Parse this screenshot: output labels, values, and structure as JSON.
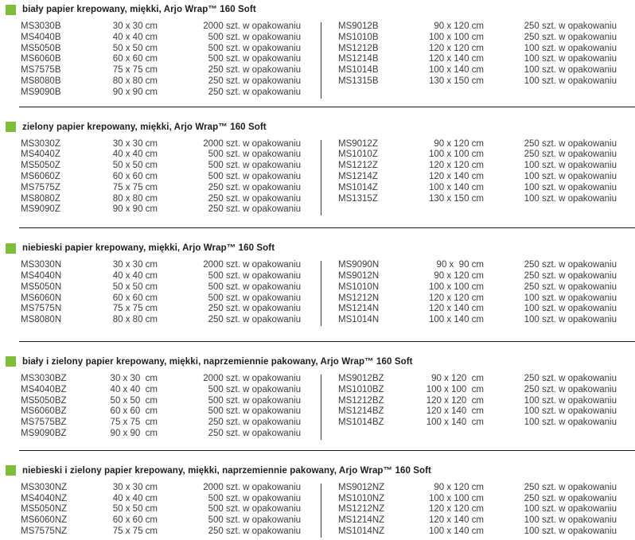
{
  "theme": {
    "bullet_green": "#7fbe3a",
    "text": "#3c3c3b",
    "heading": "#1d1d1b",
    "rule": "#1d1d1b"
  },
  "sections": [
    {
      "title": "biały papier krepowany, miękki, Arjo Wrap™ 160 Soft",
      "left": [
        {
          "code": "MS3030B",
          "size": "30 x 30 cm",
          "qty": "2000 szt. w opakowaniu"
        },
        {
          "code": "MS4040B",
          "size": "40 x 40 cm",
          "qty": "500 szt. w opakowaniu"
        },
        {
          "code": "MS5050B",
          "size": "50 x 50 cm",
          "qty": "500 szt. w opakowaniu"
        },
        {
          "code": "MS6060B",
          "size": "60 x 60 cm",
          "qty": "500 szt. w opakowaniu"
        },
        {
          "code": "MS7575B",
          "size": "75 x 75 cm",
          "qty": "250 szt. w opakowaniu"
        },
        {
          "code": "MS8080B",
          "size": "80 x 80 cm",
          "qty": "250 szt. w opakowaniu"
        },
        {
          "code": "MS9090B",
          "size": "90 x 90 cm",
          "qty": "250 szt. w opakowaniu"
        }
      ],
      "right": [
        {
          "code": "MS9012B",
          "size": "90 x 120 cm",
          "qty": "250 szt. w opakowaniu"
        },
        {
          "code": "MS1010B",
          "size": "100 x 100 cm",
          "qty": "250 szt. w opakowaniu"
        },
        {
          "code": "MS1212B",
          "size": "120 x 120 cm",
          "qty": "100 szt. w opakowaniu"
        },
        {
          "code": "MS1214B",
          "size": "120 x 140 cm",
          "qty": "100 szt. w opakowaniu"
        },
        {
          "code": "MS1014B",
          "size": "100 x 140 cm",
          "qty": "100 szt. w opakowaniu"
        },
        {
          "code": "MS1315B",
          "size": "130 x 150 cm",
          "qty": "100 szt. w opakowaniu"
        }
      ]
    },
    {
      "title": "zielony papier krepowany, miękki, Arjo Wrap™ 160 Soft",
      "left": [
        {
          "code": "MS3030Z",
          "size": "30 x 30 cm",
          "qty": "2000 szt. w opakowaniu"
        },
        {
          "code": "MS4040Z",
          "size": "40 x 40 cm",
          "qty": "500 szt. w opakowaniu"
        },
        {
          "code": "MS5050Z",
          "size": "50 x 50 cm",
          "qty": "500 szt. w opakowaniu"
        },
        {
          "code": "MS6060Z",
          "size": "60 x 60 cm",
          "qty": "500 szt. w opakowaniu"
        },
        {
          "code": "MS7575Z",
          "size": "75 x 75 cm",
          "qty": "250 szt. w opakowaniu"
        },
        {
          "code": "MS8080Z",
          "size": "80 x 80 cm",
          "qty": "250 szt. w opakowaniu"
        },
        {
          "code": "MS9090Z",
          "size": "90 x 90 cm",
          "qty": "250 szt. w opakowaniu"
        }
      ],
      "right": [
        {
          "code": "MS9012Z",
          "size": "90 x 120 cm",
          "qty": "250 szt. w opakowaniu"
        },
        {
          "code": "MS1010Z",
          "size": "100 x 100 cm",
          "qty": "250 szt. w opakowaniu"
        },
        {
          "code": "MS1212Z",
          "size": "120 x 120 cm",
          "qty": "100 szt. w opakowaniu"
        },
        {
          "code": "MS1214Z",
          "size": "120 x 140 cm",
          "qty": "100 szt. w opakowaniu"
        },
        {
          "code": "MS1014Z",
          "size": "100 x 140 cm",
          "qty": "100 szt. w opakowaniu"
        },
        {
          "code": "MS1315Z",
          "size": "130 x 150 cm",
          "qty": "100 szt. w opakowaniu"
        }
      ]
    },
    {
      "title": "niebieski papier krepowany, miękki, Arjo Wrap™ 160 Soft",
      "left": [
        {
          "code": "MS3030N",
          "size": "30 x 30 cm",
          "qty": "2000 szt. w opakowaniu"
        },
        {
          "code": "MS4040N",
          "size": "40 x 40 cm",
          "qty": "500 szt. w opakowaniu"
        },
        {
          "code": "MS5050N",
          "size": "50 x 50 cm",
          "qty": "500 szt. w opakowaniu"
        },
        {
          "code": "MS6060N",
          "size": "60 x 60 cm",
          "qty": "500 szt. w opakowaniu"
        },
        {
          "code": "MS7575N",
          "size": "75 x 75 cm",
          "qty": "250 szt. w opakowaniu"
        },
        {
          "code": "MS8080N",
          "size": "80 x 80 cm",
          "qty": "250 szt. w opakowaniu"
        }
      ],
      "right": [
        {
          "code": "MS9090N",
          "size": "90 x  90 cm",
          "qty": "250 szt. w opakowaniu"
        },
        {
          "code": "MS9012N",
          "size": "90 x 120 cm",
          "qty": "250 szt. w opakowaniu"
        },
        {
          "code": "MS1010N",
          "size": "100 x 100 cm",
          "qty": "250 szt. w opakowaniu"
        },
        {
          "code": "MS1212N",
          "size": "120 x 120 cm",
          "qty": "100 szt. w opakowaniu"
        },
        {
          "code": "MS1214N",
          "size": "120 x 140 cm",
          "qty": "100 szt. w opakowaniu"
        },
        {
          "code": "MS1014N",
          "size": "100 x 140 cm",
          "qty": "100 szt. w opakowaniu"
        }
      ]
    },
    {
      "title": "biały i zielony papier krepowany, miękki, naprzemiennie pakowany, Arjo Wrap™ 160 Soft",
      "left": [
        {
          "code": "MS3030BZ",
          "size": "30 x 30  cm",
          "qty": "2000 szt. w opakowaniu"
        },
        {
          "code": "MS4040BZ",
          "size": "40 x 40  cm",
          "qty": "500 szt. w opakowaniu"
        },
        {
          "code": "MS5050BZ",
          "size": "50 x 50  cm",
          "qty": "500 szt. w opakowaniu"
        },
        {
          "code": "MS6060BZ",
          "size": "60 x 60  cm",
          "qty": "500 szt. w opakowaniu"
        },
        {
          "code": "MS7575BZ",
          "size": "75 x 75  cm",
          "qty": "250 szt. w opakowaniu"
        },
        {
          "code": "MS9090BZ",
          "size": "90 x 90  cm",
          "qty": "250 szt. w opakowaniu"
        }
      ],
      "right": [
        {
          "code": "MS9012BZ",
          "size": "90 x 120  cm",
          "qty": "250 szt. w opakowaniu"
        },
        {
          "code": "MS1010BZ",
          "size": "100 x 100  cm",
          "qty": "250 szt. w opakowaniu"
        },
        {
          "code": "MS1212BZ",
          "size": "120 x 120  cm",
          "qty": "100 szt. w opakowaniu"
        },
        {
          "code": "MS1214BZ",
          "size": "120 x 140  cm",
          "qty": "100 szt. w opakowaniu"
        },
        {
          "code": "MS1014BZ",
          "size": "100 x 140  cm",
          "qty": "100 szt. w opakowaniu"
        }
      ]
    },
    {
      "title": "niebieski i zielony papier krepowany, miękki, naprzemiennie pakowany, Arjo Wrap™ 160 Soft",
      "left": [
        {
          "code": "MS3030NZ",
          "size": "30 x 30 cm",
          "qty": "2000 szt. w opakowaniu"
        },
        {
          "code": "MS4040NZ",
          "size": "40 x 40 cm",
          "qty": "500 szt. w opakowaniu"
        },
        {
          "code": "MS5050NZ",
          "size": "50 x 50 cm",
          "qty": "500 szt. w opakowaniu"
        },
        {
          "code": "MS6060NZ",
          "size": "60 x 60 cm",
          "qty": "500 szt. w opakowaniu"
        },
        {
          "code": "MS7575NZ",
          "size": "75 x 75 cm",
          "qty": "250 szt. w opakowaniu"
        }
      ],
      "right": [
        {
          "code": "MS9012NZ",
          "size": "90 x 120 cm",
          "qty": "250 szt. w opakowaniu"
        },
        {
          "code": "MS1010NZ",
          "size": "100 x 100 cm",
          "qty": "250 szt. w opakowaniu"
        },
        {
          "code": "MS1212NZ",
          "size": "120 x 120 cm",
          "qty": "100 szt. w opakowaniu"
        },
        {
          "code": "MS1214NZ",
          "size": "120 x 140 cm",
          "qty": "100 szt. w opakowaniu"
        },
        {
          "code": "MS1014NZ",
          "size": "100 x 140 cm",
          "qty": "100 szt. w opakowaniu"
        }
      ]
    }
  ]
}
